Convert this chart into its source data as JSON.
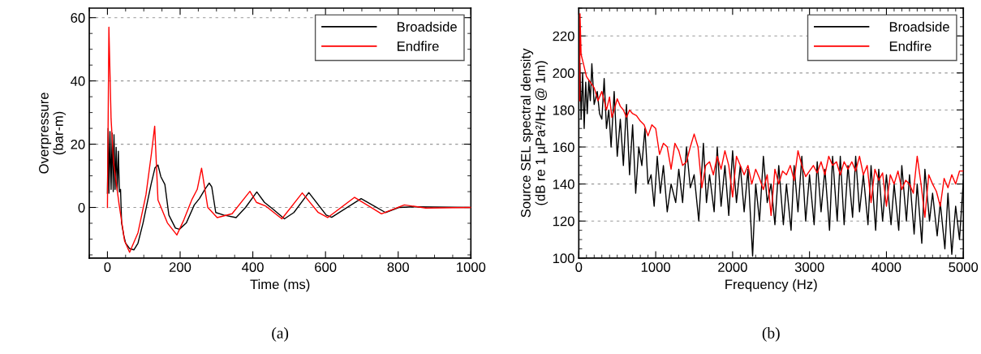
{
  "chart_data": [
    {
      "type": "line",
      "xlabel": "Time (ms)",
      "ylabel": "Overpressure\n(bar-m)",
      "xlim": [
        -50,
        1000
      ],
      "ylim": [
        -16,
        63
      ],
      "xticks": [
        0,
        200,
        400,
        600,
        800,
        1000
      ],
      "yticks": [
        0,
        20,
        40,
        60
      ],
      "grid": "y",
      "legend": "top right",
      "annotations": [
        "(a)"
      ],
      "series": [
        {
          "name": "Broadside",
          "color": "#000000",
          "x": [
            0,
            2,
            4,
            7,
            10,
            13,
            16,
            18,
            21,
            24,
            27,
            30,
            33,
            36,
            39,
            45,
            50,
            61,
            73,
            84,
            98,
            120,
            131,
            139,
            147,
            158,
            169,
            187,
            198,
            217,
            239,
            253,
            268,
            280,
            287,
            298,
            320,
            354,
            380,
            411,
            432,
            454,
            487,
            513,
            554,
            602,
            617,
            698,
            765,
            802,
            846,
            995
          ],
          "values": [
            4.5,
            25,
            4.5,
            24,
            5.7,
            23.5,
            5,
            23,
            5.7,
            19,
            5.3,
            17.8,
            4.9,
            5.7,
            -4.9,
            -8.9,
            -11.3,
            -13,
            -13.4,
            -11.3,
            -4.9,
            7.3,
            12.6,
            13.4,
            9.7,
            7.3,
            -2.4,
            -6.5,
            -6.9,
            -4.9,
            0.8,
            2.8,
            5.7,
            7.7,
            6.5,
            -1.6,
            -2.4,
            -3.2,
            0,
            4.9,
            1.6,
            -0.4,
            -3.6,
            -1.6,
            4.7,
            -2.4,
            -3.1,
            2.8,
            -1.6,
            0,
            0.2,
            0
          ]
        },
        {
          "name": "Endfire",
          "color": "#ff0000",
          "x": [
            0,
            4,
            10,
            17,
            32,
            47,
            61,
            84,
            106,
            121,
            130,
            139,
            165,
            191,
            210,
            232,
            247,
            259,
            276,
            302,
            343,
            392,
            410,
            436,
            480,
            536,
            580,
            606,
            680,
            754,
            817,
            876,
            1000
          ],
          "values": [
            0,
            57,
            28,
            14,
            1,
            -10.5,
            -14.2,
            -8,
            4,
            17,
            25.7,
            2.4,
            -4.9,
            -8.7,
            -4,
            2.4,
            5.7,
            12.4,
            0,
            -3.2,
            -2,
            5.1,
            1.6,
            0.4,
            -3.6,
            4.6,
            -1.6,
            -3.2,
            3.2,
            -2,
            0.8,
            -0.2,
            0
          ]
        }
      ]
    },
    {
      "type": "line",
      "xlabel": "Frequency (Hz)",
      "ylabel": "Source SEL spectral density\n(dB re 1 µPa²/Hz @ 1m)",
      "xlim": [
        0,
        5000
      ],
      "ylim": [
        100,
        235
      ],
      "xticks": [
        0,
        1000,
        2000,
        3000,
        4000,
        5000
      ],
      "yticks": [
        100,
        120,
        140,
        160,
        180,
        200,
        220
      ],
      "grid": "y",
      "legend": "top right",
      "annotations": [
        "(b)"
      ],
      "series": [
        {
          "name": "Broadside",
          "color": "#000000",
          "x": [
            0,
            15,
            30,
            50,
            70,
            90,
            110,
            130,
            150,
            170,
            200,
            240,
            270,
            300,
            330,
            360,
            390,
            420,
            460,
            500,
            540,
            580,
            620,
            660,
            700,
            740,
            780,
            820,
            860,
            900,
            940,
            980,
            1020,
            1060,
            1100,
            1150,
            1200,
            1260,
            1300,
            1350,
            1400,
            1450,
            1500,
            1560,
            1620,
            1660,
            1700,
            1760,
            1800,
            1850,
            1900,
            1950,
            2000,
            2050,
            2100,
            2150,
            2200,
            2260,
            2300,
            2350,
            2400,
            2450,
            2500,
            2550,
            2600,
            2660,
            2700,
            2760,
            2800,
            2850,
            2900,
            2950,
            3000,
            3060,
            3100,
            3150,
            3200,
            3260,
            3300,
            3360,
            3400,
            3450,
            3500,
            3560,
            3600,
            3650,
            3700,
            3760,
            3800,
            3860,
            3900,
            3950,
            4000,
            4060,
            4100,
            4160,
            4200,
            4260,
            4300,
            4360,
            4400,
            4460,
            4500,
            4560,
            4600,
            4660,
            4700,
            4760,
            4800,
            4850,
            4900,
            4950,
            5000
          ],
          "values": [
            196,
            205,
            175,
            200,
            170,
            195,
            178,
            196,
            185,
            205,
            183,
            190,
            178,
            175,
            197,
            170,
            180,
            160,
            190,
            155,
            175,
            150,
            183,
            145,
            172,
            135,
            160,
            150,
            170,
            140,
            145,
            128,
            155,
            135,
            150,
            125,
            140,
            130,
            148,
            130,
            160,
            138,
            145,
            120,
            162,
            130,
            145,
            125,
            160,
            128,
            150,
            123,
            158,
            130,
            150,
            125,
            148,
            101,
            140,
            120,
            155,
            130,
            140,
            118,
            150,
            118,
            140,
            115,
            150,
            125,
            155,
            120,
            145,
            118,
            152,
            125,
            148,
            115,
            155,
            120,
            155,
            118,
            150,
            122,
            155,
            125,
            145,
            118,
            150,
            115,
            148,
            120,
            145,
            118,
            140,
            115,
            150,
            120,
            145,
            113,
            140,
            108,
            148,
            120,
            135,
            112,
            130,
            105,
            135,
            102,
            128,
            110,
            142
          ]
        },
        {
          "name": "Endfire",
          "color": "#ff0000",
          "x": [
            12,
            16,
            30,
            60,
            100,
            150,
            200,
            250,
            300,
            330,
            360,
            400,
            430,
            460,
            500,
            540,
            580,
            620,
            660,
            700,
            750,
            800,
            850,
            900,
            950,
            1000,
            1050,
            1100,
            1150,
            1200,
            1250,
            1300,
            1350,
            1400,
            1450,
            1500,
            1550,
            1600,
            1650,
            1700,
            1750,
            1800,
            1850,
            1900,
            1950,
            2000,
            2050,
            2100,
            2150,
            2200,
            2250,
            2300,
            2350,
            2400,
            2450,
            2500,
            2550,
            2600,
            2650,
            2700,
            2750,
            2800,
            2850,
            2900,
            2950,
            3000,
            3050,
            3100,
            3150,
            3200,
            3250,
            3300,
            3350,
            3400,
            3450,
            3500,
            3550,
            3600,
            3650,
            3700,
            3750,
            3800,
            3850,
            3900,
            3950,
            4000,
            4050,
            4100,
            4150,
            4200,
            4250,
            4300,
            4350,
            4400,
            4450,
            4500,
            4550,
            4600,
            4650,
            4700,
            4750,
            4800,
            4850,
            4900,
            4950,
            5000
          ],
          "values": [
            185,
            232,
            210,
            205,
            198,
            195,
            192,
            185,
            190,
            185,
            180,
            187,
            176,
            180,
            186,
            182,
            180,
            176,
            180,
            178,
            177,
            174,
            172,
            166,
            172,
            170,
            156,
            162,
            160,
            148,
            162,
            158,
            150,
            152,
            160,
            167,
            160,
            138,
            150,
            152,
            145,
            155,
            148,
            158,
            150,
            133,
            155,
            150,
            145,
            150,
            140,
            148,
            143,
            137,
            145,
            123,
            148,
            140,
            147,
            145,
            150,
            142,
            158,
            150,
            144,
            147,
            150,
            146,
            152,
            145,
            155,
            150,
            152,
            145,
            152,
            148,
            152,
            147,
            155,
            145,
            150,
            130,
            148,
            142,
            146,
            128,
            145,
            140,
            147,
            137,
            142,
            140,
            135,
            155,
            140,
            122,
            145,
            140,
            136,
            128,
            143,
            138,
            145,
            140,
            147,
            147
          ]
        }
      ]
    }
  ]
}
